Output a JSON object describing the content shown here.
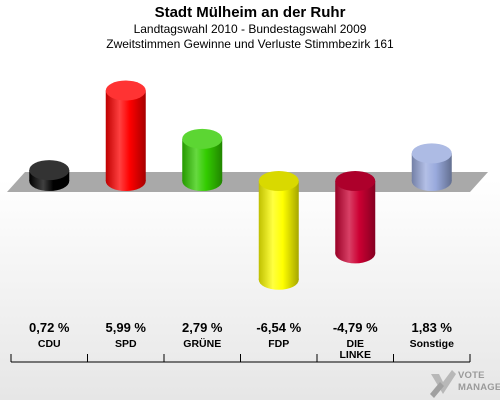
{
  "title": "Stadt Mülheim an der Ruhr",
  "subtitle_1": "Landtagswahl 2010 - Bundestagswahl 2009",
  "subtitle_2": "Zweitstimmen Gewinne und Verluste Stimmbezirk 161",
  "chart_data": {
    "type": "bar",
    "categories": [
      "CDU",
      "SPD",
      "GRÜNE",
      "FDP",
      "DIE LINKE",
      "Sonstige"
    ],
    "category_lines": [
      [
        "CDU"
      ],
      [
        "SPD"
      ],
      [
        "GRÜNE"
      ],
      [
        "FDP"
      ],
      [
        "DIE",
        "LINKE"
      ],
      [
        "Sonstige"
      ]
    ],
    "values": [
      0.72,
      5.99,
      2.79,
      -6.54,
      -4.79,
      1.83
    ],
    "value_labels": [
      "0,72 %",
      "5,99 %",
      "2,79 %",
      "-6,54 %",
      "-4,79 %",
      "1,83 %"
    ],
    "colors": [
      "#000000",
      "#ff0000",
      "#33cc00",
      "#ffff00",
      "#cc0033",
      "#99aadd"
    ],
    "unit": "%",
    "grid": false,
    "legend": "none"
  },
  "logo": {
    "line1": "VOTE",
    "line2": "MANAGER",
    "icon": "checkmark-x-icon"
  }
}
